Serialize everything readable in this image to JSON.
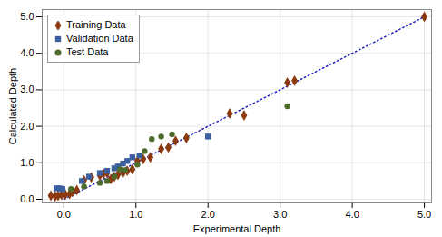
{
  "chart_data": {
    "type": "scatter",
    "xlabel": "Experimental Depth",
    "ylabel": "Calculated Depth",
    "xlim": [
      -0.3,
      5.1
    ],
    "ylim": [
      -0.1,
      5.2
    ],
    "xticks": [
      0,
      1,
      2,
      3,
      4,
      5
    ],
    "yticks": [
      0,
      1,
      2,
      3,
      4,
      5
    ],
    "grid": true,
    "legend": "upper left",
    "series": [
      {
        "type": "line",
        "color": "#1F1FBF",
        "line_style": "dotted",
        "x": [
          0,
          5
        ],
        "values": [
          0,
          5
        ]
      },
      {
        "name": "Training Data",
        "type": "scatter",
        "color": "#8B3A0F",
        "marker": "diamond",
        "x": [
          -0.18,
          -0.12,
          -0.08,
          -0.03,
          0.02,
          0.08,
          0.12,
          0.18,
          0.28,
          0.38,
          0.5,
          0.55,
          0.6,
          0.65,
          0.7,
          0.75,
          0.82,
          0.88,
          0.95,
          1.02,
          1.1,
          1.2,
          1.35,
          1.45,
          1.55,
          1.7,
          2.3,
          2.5,
          3.1,
          3.2,
          5.0
        ],
        "values": [
          0.1,
          0.08,
          0.1,
          0.12,
          0.13,
          0.15,
          0.2,
          0.25,
          0.52,
          0.6,
          0.65,
          0.7,
          0.72,
          0.55,
          0.62,
          0.67,
          0.72,
          0.78,
          0.82,
          1.05,
          1.1,
          1.15,
          1.38,
          1.42,
          1.6,
          1.68,
          2.35,
          2.3,
          3.2,
          3.25,
          5.0
        ]
      },
      {
        "name": "Validation Data",
        "type": "scatter",
        "color": "#3C5FA0",
        "marker": "square",
        "x": [
          -0.1,
          -0.06,
          -0.02,
          0.25,
          0.35,
          0.5,
          0.6,
          0.7,
          0.75,
          0.82,
          0.88,
          0.95,
          1.05,
          2.0
        ],
        "values": [
          0.3,
          0.3,
          0.28,
          0.5,
          0.62,
          0.72,
          0.78,
          0.85,
          0.9,
          0.98,
          1.05,
          1.15,
          1.2,
          1.72
        ]
      },
      {
        "name": "Test Data",
        "type": "scatter",
        "color": "#4D6B2A",
        "marker": "circle",
        "x": [
          0.1,
          0.28,
          0.5,
          0.6,
          0.7,
          0.78,
          0.85,
          1.02,
          1.12,
          1.22,
          1.35,
          1.5,
          3.1
        ],
        "values": [
          0.28,
          0.35,
          0.45,
          0.5,
          0.62,
          0.82,
          0.8,
          0.95,
          1.32,
          1.65,
          1.72,
          1.78,
          2.55
        ]
      }
    ]
  }
}
